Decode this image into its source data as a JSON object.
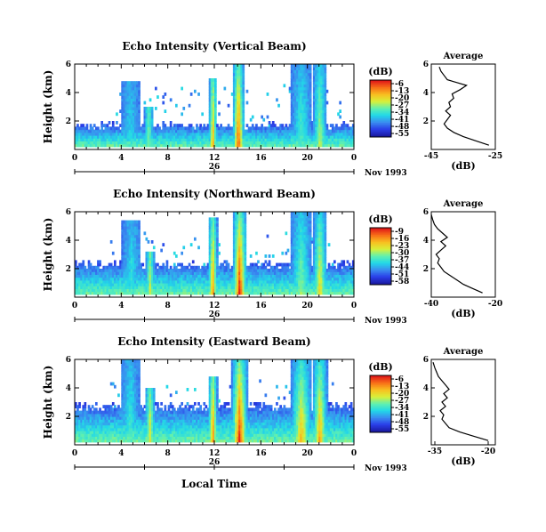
{
  "figure": {
    "xlabel": "Local Time",
    "date_label": "Nov 1993",
    "day_label": "26"
  },
  "colorbar": {
    "unit": "(dB)",
    "colors": [
      "#1a1aa0",
      "#2a3ee8",
      "#3a8cf0",
      "#22d8e8",
      "#60f0b0",
      "#d8f03a",
      "#f8c020",
      "#f87018",
      "#e01818"
    ]
  },
  "chart_data": [
    {
      "type": "heatmap",
      "title": "Echo Intensity (Vertical Beam)",
      "ylabel": "Height (km)",
      "x_ticks": [
        "0",
        "4",
        "8",
        "12",
        "16",
        "20",
        "0"
      ],
      "xlim": [
        0,
        24
      ],
      "y_ticks": [
        "2",
        "4",
        "6"
      ],
      "ylim": [
        0,
        6
      ],
      "colorbar_ticks": [
        "-6",
        "-13",
        "-20",
        "-27",
        "-34",
        "-41",
        "-48",
        "-55"
      ],
      "columns": [
        {
          "center": 4.7,
          "width": 1.6,
          "top": 4.8,
          "peak": 0.35
        },
        {
          "center": 6.3,
          "width": 0.8,
          "top": 3.0,
          "peak": 0.55
        },
        {
          "center": 11.8,
          "width": 0.7,
          "top": 5.0,
          "peak": 0.8
        },
        {
          "center": 14.0,
          "width": 1.0,
          "top": 6.0,
          "peak": 0.95
        },
        {
          "center": 19.4,
          "width": 1.8,
          "top": 6.0,
          "peak": 0.45
        },
        {
          "center": 21.0,
          "width": 1.2,
          "top": 6.0,
          "peak": 0.6
        }
      ],
      "background_top": 1.6,
      "average": {
        "title": "Average",
        "xlabel": "(dB)",
        "xlim": [
          -45,
          -25
        ],
        "x_ticks": [
          "-45",
          "-25"
        ],
        "ylim": [
          0,
          6
        ],
        "y_ticks": [
          "2",
          "4",
          "6"
        ],
        "profile": [
          [
            0.3,
            -27
          ],
          [
            0.6,
            -31
          ],
          [
            0.9,
            -35
          ],
          [
            1.2,
            -38
          ],
          [
            1.5,
            -40
          ],
          [
            1.8,
            -41
          ],
          [
            2.1,
            -40
          ],
          [
            2.4,
            -39
          ],
          [
            2.7,
            -40.5
          ],
          [
            3.0,
            -39
          ],
          [
            3.3,
            -39.5
          ],
          [
            3.6,
            -38
          ],
          [
            3.9,
            -38.5
          ],
          [
            4.2,
            -36
          ],
          [
            4.5,
            -34
          ],
          [
            4.7,
            -37
          ],
          [
            4.9,
            -40
          ],
          [
            5.2,
            -41
          ],
          [
            5.5,
            -42
          ],
          [
            5.8,
            -42.5
          ]
        ]
      }
    },
    {
      "type": "heatmap",
      "title": "Echo Intensity (Northward Beam)",
      "ylabel": "Height (km)",
      "x_ticks": [
        "0",
        "4",
        "8",
        "12",
        "16",
        "20",
        "0"
      ],
      "xlim": [
        0,
        24
      ],
      "y_ticks": [
        "2",
        "4",
        "6"
      ],
      "ylim": [
        0,
        6
      ],
      "colorbar_ticks": [
        "-9",
        "-16",
        "-23",
        "-30",
        "-37",
        "-44",
        "-51",
        "-58"
      ],
      "columns": [
        {
          "center": 4.8,
          "width": 1.6,
          "top": 5.4,
          "peak": 0.4
        },
        {
          "center": 6.4,
          "width": 0.8,
          "top": 3.2,
          "peak": 0.6
        },
        {
          "center": 11.8,
          "width": 0.8,
          "top": 5.6,
          "peak": 0.85
        },
        {
          "center": 14.1,
          "width": 1.2,
          "top": 6.0,
          "peak": 1.0
        },
        {
          "center": 19.4,
          "width": 1.8,
          "top": 6.0,
          "peak": 0.55
        },
        {
          "center": 21.0,
          "width": 1.2,
          "top": 6.0,
          "peak": 0.7
        }
      ],
      "background_top": 2.2,
      "average": {
        "title": "Average",
        "xlabel": "(dB)",
        "xlim": [
          -40,
          -20
        ],
        "x_ticks": [
          "-40",
          "-20"
        ],
        "ylim": [
          0,
          6
        ],
        "y_ticks": [
          "2",
          "4",
          "6"
        ],
        "profile": [
          [
            0.3,
            -24
          ],
          [
            0.6,
            -27
          ],
          [
            0.9,
            -30
          ],
          [
            1.2,
            -32
          ],
          [
            1.5,
            -34
          ],
          [
            1.8,
            -36
          ],
          [
            2.1,
            -37
          ],
          [
            2.4,
            -38
          ],
          [
            2.7,
            -37.5
          ],
          [
            3.0,
            -38.5
          ],
          [
            3.3,
            -37
          ],
          [
            3.6,
            -35.5
          ],
          [
            3.9,
            -37
          ],
          [
            4.2,
            -35
          ],
          [
            4.5,
            -36.5
          ],
          [
            4.8,
            -38
          ],
          [
            5.1,
            -39
          ],
          [
            5.4,
            -39.5
          ],
          [
            5.8,
            -40
          ]
        ]
      }
    },
    {
      "type": "heatmap",
      "title": "Echo Intensity (Eastward Beam)",
      "ylabel": "Height (km)",
      "x_ticks": [
        "0",
        "4",
        "8",
        "12",
        "16",
        "20",
        "0"
      ],
      "xlim": [
        0,
        24
      ],
      "y_ticks": [
        "2",
        "4",
        "6"
      ],
      "ylim": [
        0,
        6
      ],
      "colorbar_ticks": [
        "-6",
        "-13",
        "-20",
        "-27",
        "-34",
        "-41",
        "-48",
        "-55"
      ],
      "columns": [
        {
          "center": 4.7,
          "width": 1.6,
          "top": 6.0,
          "peak": 0.45
        },
        {
          "center": 6.4,
          "width": 0.9,
          "top": 4.0,
          "peak": 0.65
        },
        {
          "center": 11.8,
          "width": 0.8,
          "top": 4.8,
          "peak": 0.85
        },
        {
          "center": 14.1,
          "width": 1.4,
          "top": 6.0,
          "peak": 1.0
        },
        {
          "center": 19.4,
          "width": 1.8,
          "top": 6.0,
          "peak": 0.75
        },
        {
          "center": 21.0,
          "width": 1.3,
          "top": 6.0,
          "peak": 0.8
        }
      ],
      "background_top": 2.6,
      "average": {
        "title": "Average",
        "xlabel": "(dB)",
        "xlim": [
          -36,
          -18
        ],
        "x_ticks": [
          "-35",
          "-20"
        ],
        "ylim": [
          0,
          6
        ],
        "y_ticks": [
          "2",
          "4",
          "6"
        ],
        "profile": [
          [
            0.3,
            -20
          ],
          [
            0.6,
            -24
          ],
          [
            0.9,
            -28
          ],
          [
            1.2,
            -31
          ],
          [
            1.5,
            -32
          ],
          [
            1.8,
            -33
          ],
          [
            2.1,
            -32.5
          ],
          [
            2.4,
            -33.5
          ],
          [
            2.7,
            -32
          ],
          [
            3.0,
            -33
          ],
          [
            3.3,
            -31.5
          ],
          [
            3.6,
            -32.5
          ],
          [
            3.9,
            -31
          ],
          [
            4.2,
            -32
          ],
          [
            4.5,
            -33
          ],
          [
            4.8,
            -34
          ],
          [
            5.1,
            -34.5
          ],
          [
            5.4,
            -35
          ],
          [
            5.8,
            -35.5
          ]
        ]
      }
    }
  ]
}
